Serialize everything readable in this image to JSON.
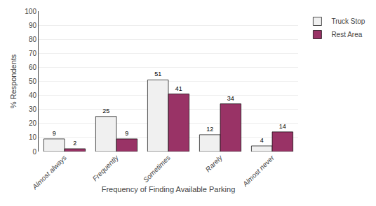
{
  "chart_data": {
    "type": "bar",
    "categories": [
      "Almost always",
      "Frequently",
      "Sometimes",
      "Rarely",
      "Almost never"
    ],
    "series": [
      {
        "name": "Truck Stop",
        "color": "#f0f0f0",
        "values": [
          9,
          25,
          51,
          12,
          4
        ]
      },
      {
        "name": "Rest Area",
        "color": "#993366",
        "values": [
          2,
          9,
          41,
          34,
          14
        ]
      }
    ],
    "xlabel": "Frequency of Finding Available Parking",
    "ylabel": "% Respondents",
    "ylim": [
      0,
      100
    ],
    "yticks": [
      0,
      10,
      20,
      30,
      40,
      50,
      60,
      70,
      80,
      90,
      100
    ],
    "grid": true,
    "legend": "right",
    "data_labels": true
  }
}
